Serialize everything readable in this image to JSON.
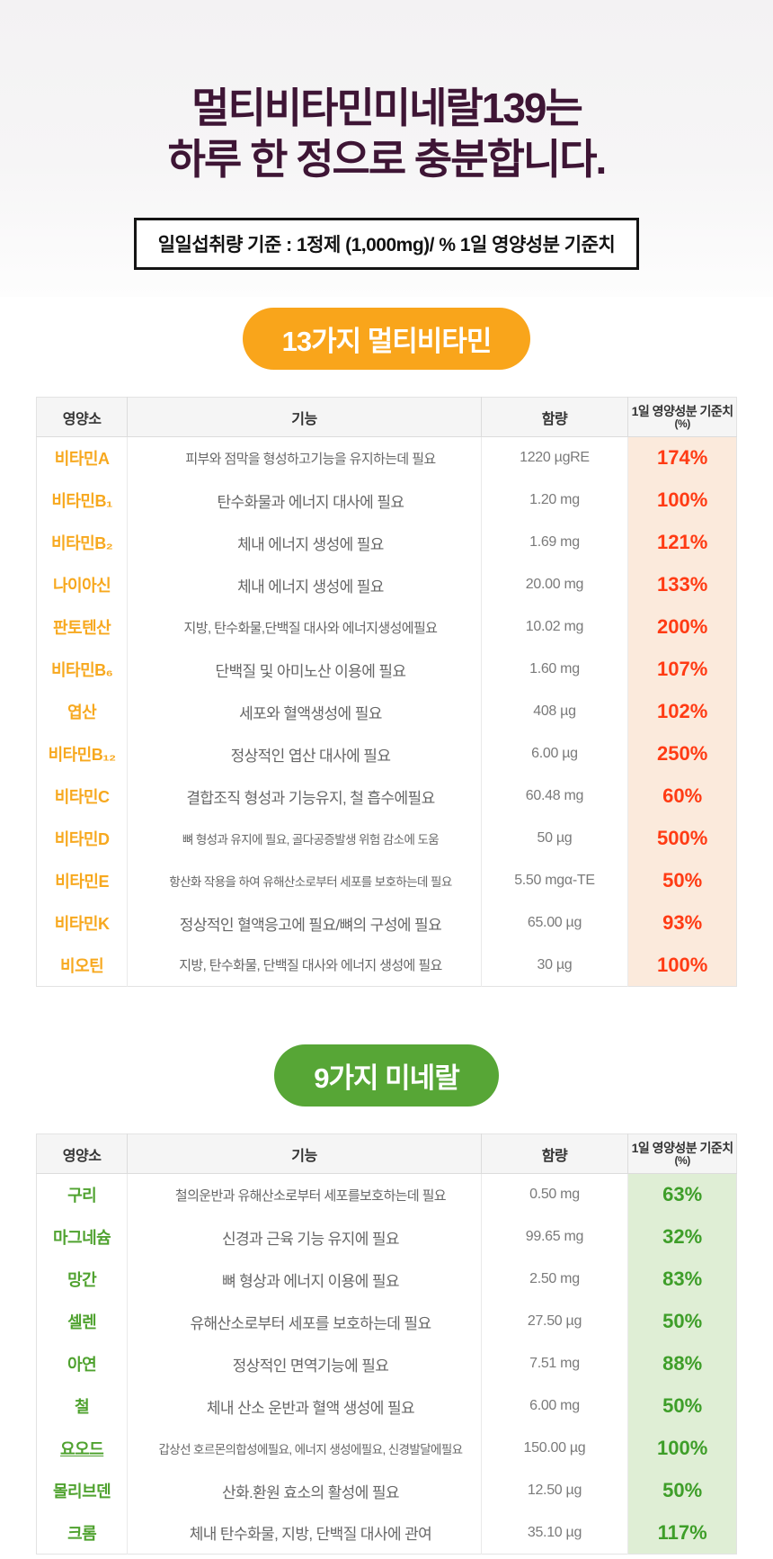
{
  "page": {
    "title_line1": "멀티비타민미네랄139는",
    "title_line2": "하루 한 정으로 충분합니다.",
    "dosage_note": "일일섭취량 기준 : 1정제 (1,000mg)/ % 1일 영양성분 기준치"
  },
  "table_columns": {
    "nutrient": "영양소",
    "function": "기능",
    "amount": "함량",
    "daily_value_line1": "1일 영양성분 기준치",
    "daily_value_line2": "(%)"
  },
  "vitamin_section": {
    "badge_label": "13가지 멀티비타민",
    "theme": {
      "badge_bg": "#F9A51B",
      "name_color": "#F7A81E",
      "percent_color": "#FF3B14",
      "percent_bg": "#FBEADC"
    },
    "rows": [
      {
        "name": "비타민A",
        "function": "피부와 점막을 형성하고기능을 유지하는데 필요",
        "amount": "1220 µgRE",
        "percent": "174%"
      },
      {
        "name": "비타민B₁",
        "function": "탄수화물과 에너지 대사에 필요",
        "amount": "1.20 mg",
        "percent": "100%"
      },
      {
        "name": "비타민B₂",
        "function": "체내 에너지 생성에 필요",
        "amount": "1.69 mg",
        "percent": "121%"
      },
      {
        "name": "나이아신",
        "function": "체내 에너지 생성에 필요",
        "amount": "20.00 mg",
        "percent": "133%"
      },
      {
        "name": "판토텐산",
        "function": "지방, 탄수화물,단백질 대사와 에너지생성에필요",
        "amount": "10.02 mg",
        "percent": "200%"
      },
      {
        "name": "비타민B₆",
        "function": "단백질 및 아미노산 이용에 필요",
        "amount": "1.60 mg",
        "percent": "107%"
      },
      {
        "name": "엽산",
        "function": "세포와 혈액생성에 필요",
        "amount": "408 µg",
        "percent": "102%"
      },
      {
        "name": "비타민B₁₂",
        "function": "정상적인 엽산 대사에 필요",
        "amount": "6.00 µg",
        "percent": "250%"
      },
      {
        "name": "비타민C",
        "function": "결합조직 형성과 기능유지, 철 흡수에필요",
        "amount": "60.48 mg",
        "percent": "60%"
      },
      {
        "name": "비타민D",
        "function": "뼈 형성과 유지에 필요, 골다공증발생 위험 감소에 도움",
        "amount": "50 µg",
        "percent": "500%"
      },
      {
        "name": "비타민E",
        "function": "항산화 작용을 하여 유해산소로부터 세포를 보호하는데 필요",
        "amount": "5.50 mgα-TE",
        "percent": "50%"
      },
      {
        "name": "비타민K",
        "function": "정상적인 혈액응고에 필요/뼈의 구성에 필요",
        "amount": "65.00 µg",
        "percent": "93%"
      },
      {
        "name": "비오틴",
        "function": "지방, 탄수화물, 단백질 대사와 에너지 생성에 필요",
        "amount": "30 µg",
        "percent": "100%"
      }
    ]
  },
  "mineral_section": {
    "badge_label": "9가지 미네랄",
    "theme": {
      "badge_bg": "#57A636",
      "name_color": "#4FA22F",
      "percent_color": "#3E9E29",
      "percent_bg": "#DFEED5"
    },
    "rows": [
      {
        "name": "구리",
        "function": "철의운반과 유해산소로부터 세포를보호하는데 필요",
        "amount": "0.50 mg",
        "percent": "63%"
      },
      {
        "name": "마그네슘",
        "function": "신경과 근육 기능 유지에 필요",
        "amount": "99.65 mg",
        "percent": "32%"
      },
      {
        "name": "망간",
        "function": "뼈 형상과 에너지 이용에 필요",
        "amount": "2.50 mg",
        "percent": "83%"
      },
      {
        "name": "셀렌",
        "function": "유해산소로부터 세포를 보호하는데 필요",
        "amount": "27.50 µg",
        "percent": "50%"
      },
      {
        "name": "아연",
        "function": "정상적인 면역기능에 필요",
        "amount": "7.51 mg",
        "percent": "88%"
      },
      {
        "name": "철",
        "function": "체내 산소 운반과 혈액 생성에 필요",
        "amount": "6.00 mg",
        "percent": "50%"
      },
      {
        "name": "요오드",
        "function": "갑상선 호르몬의합성에필요, 에너지 생성에필요, 신경발달에필요",
        "amount": "150.00 µg",
        "percent": "100%",
        "underline_name": true
      },
      {
        "name": "몰리브덴",
        "function": "산화.환원 효소의 활성에 필요",
        "amount": "12.50 µg",
        "percent": "50%"
      },
      {
        "name": "크롬",
        "function": "체내 탄수화물, 지방, 단백질 대사에 관여",
        "amount": "35.10 µg",
        "percent": "117%"
      }
    ]
  }
}
